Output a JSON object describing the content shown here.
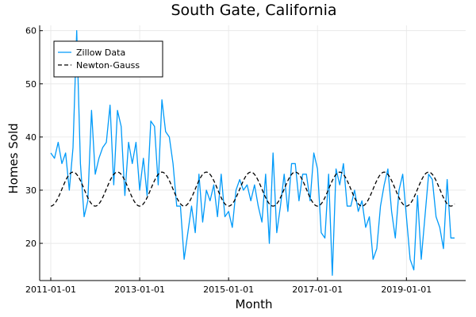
{
  "chart_data": {
    "type": "line",
    "title": "South Gate, California",
    "xlabel": "Month",
    "ylabel": "Homes Sold",
    "xlim": [
      "2010-10-01",
      "2020-05-01"
    ],
    "ylim": [
      13,
      61
    ],
    "x_ticks": [
      "2011-01-01",
      "2013-01-01",
      "2015-01-01",
      "2017-01-01",
      "2019-01-01"
    ],
    "y_ticks": [
      20,
      30,
      40,
      50,
      60
    ],
    "grid": true,
    "legend_position": "top-left",
    "colors": {
      "zillow": "#009AF9",
      "fit": "#000000",
      "axis": "#000000",
      "grid": "#E6E6E6"
    },
    "series": [
      {
        "name": "Zillow Data",
        "style": "solid",
        "start": "2011-01-01",
        "frequency": "monthly",
        "values": [
          37,
          36,
          39,
          35,
          37,
          30,
          38,
          60,
          35,
          25,
          28,
          45,
          33,
          36,
          38,
          39,
          46,
          31,
          45,
          42,
          29,
          39,
          35,
          39,
          30,
          36,
          29,
          43,
          42,
          31,
          47,
          41,
          40,
          35,
          27,
          27,
          17,
          22,
          27,
          22,
          33,
          24,
          30,
          28,
          31,
          25,
          33,
          25,
          26,
          23,
          30,
          32,
          30,
          31,
          28,
          31,
          27,
          24,
          33,
          20,
          37,
          22,
          27,
          33,
          26,
          35,
          35,
          28,
          33,
          33,
          28,
          37,
          34,
          22,
          21,
          33,
          14,
          34,
          31,
          35,
          27,
          27,
          30,
          26,
          28,
          23,
          25,
          17,
          19,
          27,
          31,
          34,
          26,
          21,
          30,
          33,
          25,
          17,
          15,
          29,
          17,
          25,
          33,
          32,
          25,
          23,
          19,
          32,
          21,
          21
        ]
      },
      {
        "name": "Newton-Gauss",
        "style": "dashed",
        "model": "sinusoid",
        "mean": 30.2,
        "amplitude": 3.2,
        "period_months": 12,
        "start": "2011-01-01",
        "end": "2020-02-01"
      }
    ]
  }
}
